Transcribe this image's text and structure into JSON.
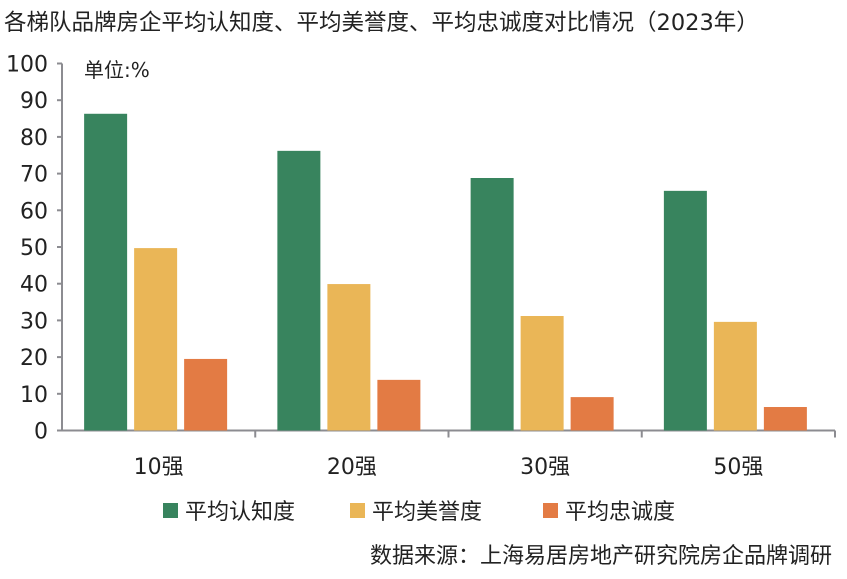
{
  "chart_data": {
    "type": "bar",
    "title": "各梯队品牌房企平均认知度、平均美誉度、平均忠诚度对比情况（2023年）",
    "unit_label": "单位:%",
    "categories": [
      "10强",
      "20强",
      "30强",
      "50强"
    ],
    "series": [
      {
        "name": "平均认知度",
        "color": "#38845E",
        "values": [
          86.3,
          76.2,
          68.8,
          65.3
        ]
      },
      {
        "name": "平均美誉度",
        "color": "#EAB657",
        "values": [
          49.7,
          39.9,
          31.2,
          29.6
        ]
      },
      {
        "name": "平均忠诚度",
        "color": "#E37B44",
        "values": [
          19.5,
          13.8,
          9.1,
          6.4
        ]
      }
    ],
    "ylim": [
      0,
      100
    ],
    "yticks": [
      0,
      10,
      20,
      30,
      40,
      50,
      60,
      70,
      80,
      90,
      100
    ],
    "grid": false,
    "legend": "bottom",
    "source": "数据来源：上海易居房地产研究院房企品牌调研"
  }
}
